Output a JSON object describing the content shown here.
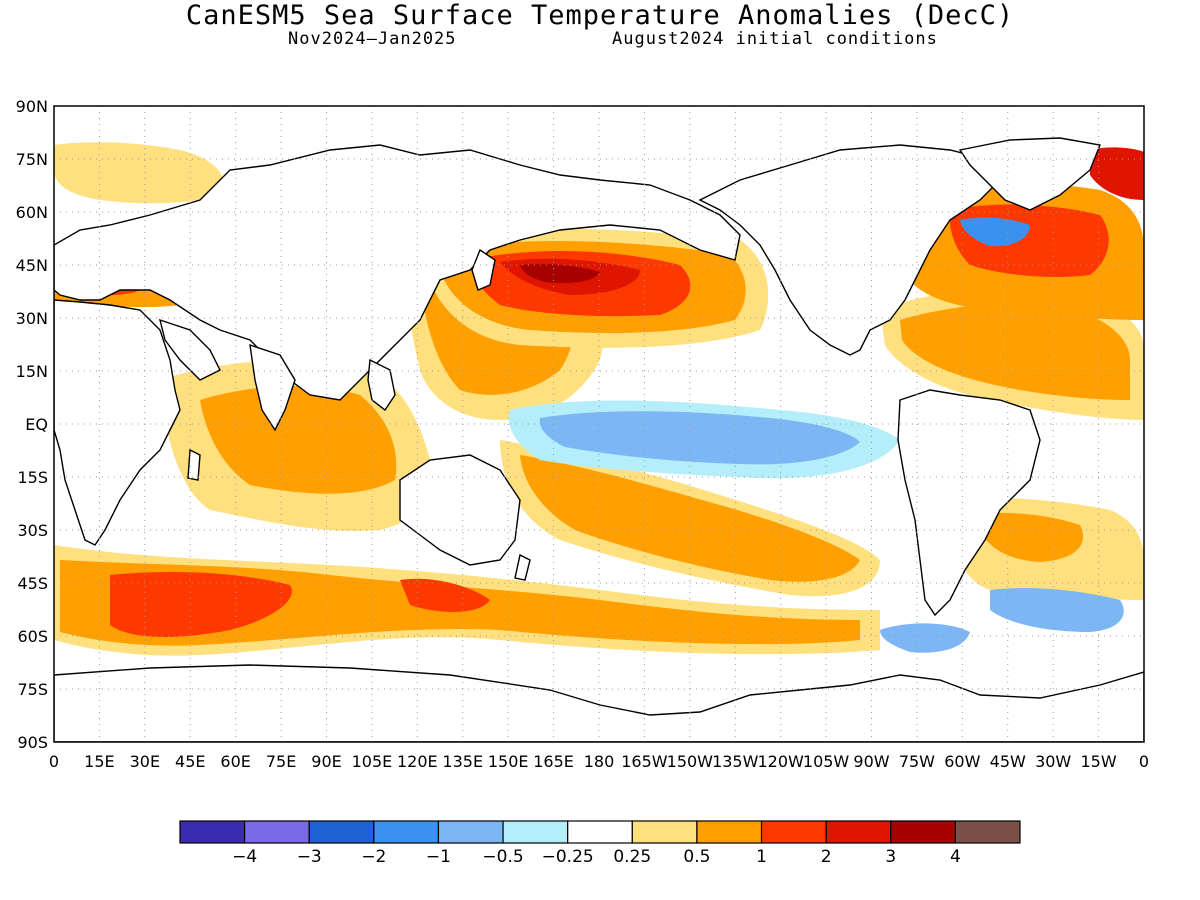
{
  "title": "CanESM5 Sea Surface Temperature Anomalies (DecC)",
  "subtitle_left": "Nov2024–Jan2025",
  "subtitle_right": "August2024 initial conditions",
  "map": {
    "lat_labels": [
      "90N",
      "75N",
      "60N",
      "45N",
      "30N",
      "15N",
      "EQ",
      "15S",
      "30S",
      "45S",
      "60S",
      "75S",
      "90S"
    ],
    "lon_labels": [
      "0",
      "15E",
      "30E",
      "45E",
      "60E",
      "75E",
      "90E",
      "105E",
      "120E",
      "135E",
      "150E",
      "165E",
      "180",
      "165W",
      "150W",
      "135W",
      "120W",
      "105W",
      "90W",
      "75W",
      "60W",
      "45W",
      "30W",
      "15W",
      "0"
    ],
    "grid_lines": "dotted"
  },
  "colorbar": {
    "colors": [
      "#3b2bb0",
      "#7a6ae8",
      "#1f62d4",
      "#3a92ee",
      "#7cb6f4",
      "#b4eefa",
      "#ffffff",
      "#ffe07e",
      "#ff9f00",
      "#ff3800",
      "#e01500",
      "#a80000",
      "#7a5048"
    ],
    "labels": [
      "−4",
      "−3",
      "−2",
      "−1",
      "−0.5",
      "−0.25",
      "0.25",
      "0.5",
      "1",
      "2",
      "3",
      "4"
    ]
  }
}
